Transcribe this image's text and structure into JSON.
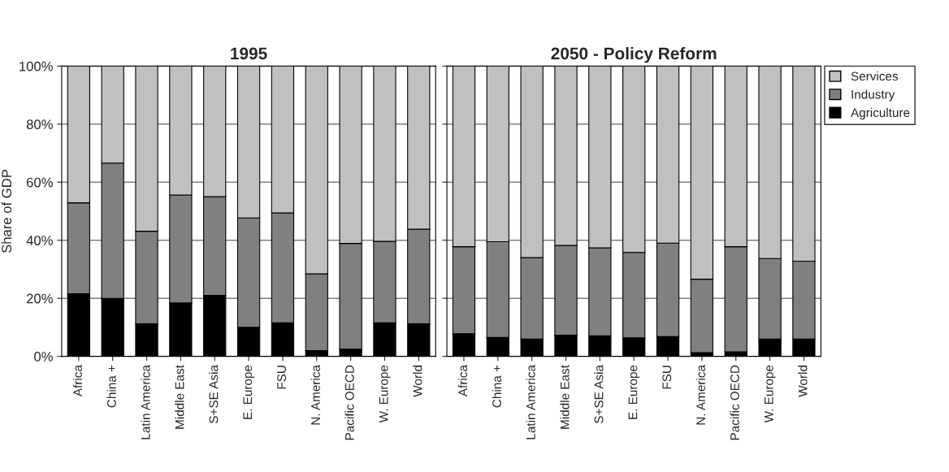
{
  "chart_data": [
    {
      "type": "bar",
      "title": "1995",
      "ylabel": "Share of GDP",
      "stacked": true,
      "grid": "y",
      "legend": false,
      "categories": [
        "Africa",
        "China +",
        "Latin America",
        "Middle East",
        "S+SE Asia",
        "E. Europe",
        "FSU",
        "N. America",
        "Pacific OECD",
        "W. Europe",
        "World"
      ],
      "ylim": [
        0,
        100
      ],
      "yticks": [
        {
          "value": 0,
          "label": "0%"
        },
        {
          "value": 20,
          "label": "20%"
        },
        {
          "value": 40,
          "label": "40%"
        },
        {
          "value": 60,
          "label": "60%"
        },
        {
          "value": 80,
          "label": "80%"
        },
        {
          "value": 100,
          "label": "100%"
        }
      ],
      "series": [
        {
          "color": "#000000",
          "values": [
            21.6,
            20.0,
            11.2,
            18.4,
            21.0,
            10.0,
            11.6,
            2.0,
            2.5,
            11.6,
            11.2
          ]
        },
        {
          "color": "#808080",
          "values": [
            31.3,
            46.6,
            31.9,
            37.2,
            34.0,
            37.7,
            37.8,
            26.4,
            36.4,
            28.0,
            32.6
          ]
        },
        {
          "color": "#c0c0c0",
          "values": [
            47.1,
            33.4,
            56.9,
            44.4,
            45.0,
            52.3,
            50.6,
            71.6,
            61.1,
            60.4,
            56.2
          ]
        }
      ]
    },
    {
      "type": "bar",
      "title": "2050 - Policy Reform",
      "stacked": true,
      "grid": "y",
      "legend": "right",
      "tick_labels": "x",
      "categories": [
        "Africa",
        "China +",
        "Latin America",
        "Middle East",
        "S+SE Asia",
        "E. Europe",
        "FSU",
        "N. America",
        "Pacific OECD",
        "W. Europe",
        "World"
      ],
      "ylim": [
        0,
        100
      ],
      "yticks": [
        {
          "value": 0,
          "label": null
        },
        {
          "value": 20,
          "label": null
        },
        {
          "value": 40,
          "label": null
        },
        {
          "value": 60,
          "label": null
        },
        {
          "value": 80,
          "label": null
        },
        {
          "value": 100,
          "label": null
        }
      ],
      "series": [
        {
          "name": "Agriculture",
          "color": "#000000",
          "values": [
            7.8,
            6.5,
            6.0,
            7.3,
            7.1,
            6.4,
            6.8,
            1.3,
            1.6,
            6.0,
            6.0
          ]
        },
        {
          "name": "Industry",
          "color": "#808080",
          "values": [
            30.0,
            33.0,
            28.0,
            30.9,
            30.3,
            29.4,
            32.2,
            25.3,
            36.2,
            27.7,
            26.8
          ]
        },
        {
          "name": "Services",
          "color": "#c0c0c0",
          "values": [
            62.2,
            60.5,
            66.0,
            61.8,
            62.6,
            64.2,
            61.0,
            73.4,
            62.2,
            66.3,
            67.2
          ]
        }
      ]
    }
  ]
}
